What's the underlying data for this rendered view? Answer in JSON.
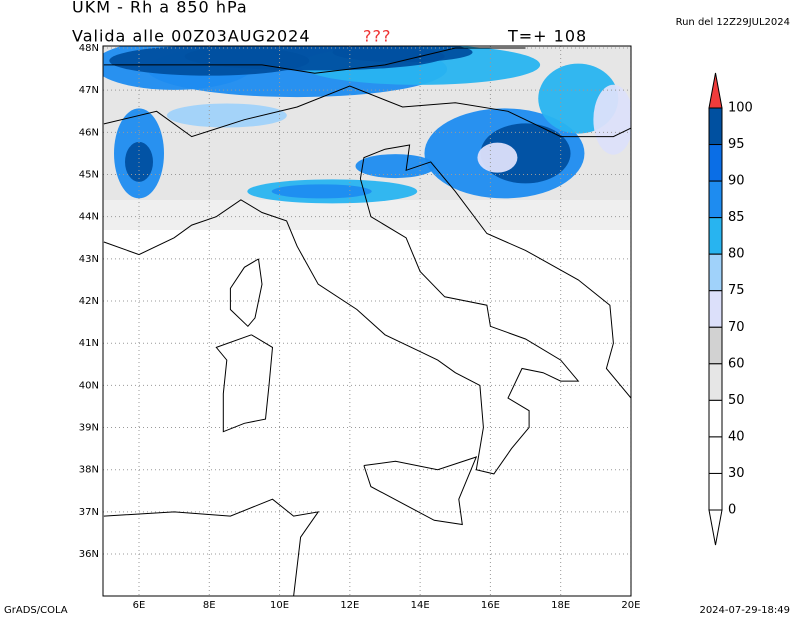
{
  "header": {
    "title": "UKM - Rh a 850 hPa",
    "valid": "Valida alle 00Z03AUG2024",
    "flag": "???",
    "step": "T=+ 108",
    "run": "Run del 12Z29JUL2024"
  },
  "map": {
    "lat_labels": [
      "48N",
      "47N",
      "46N",
      "45N",
      "44N",
      "43N",
      "42N",
      "41N",
      "40N",
      "39N",
      "38N",
      "37N",
      "36N"
    ],
    "lon_labels": [
      "6E",
      "8E",
      "10E",
      "12E",
      "14E",
      "16E",
      "18E",
      "20E"
    ]
  },
  "colorbar": {
    "labels": [
      100,
      95,
      90,
      85,
      80,
      75,
      70,
      60,
      50,
      40,
      30,
      0
    ]
  },
  "footer": {
    "left": "GrADS/COLA",
    "right": "2024-07-29-18:49"
  }
}
